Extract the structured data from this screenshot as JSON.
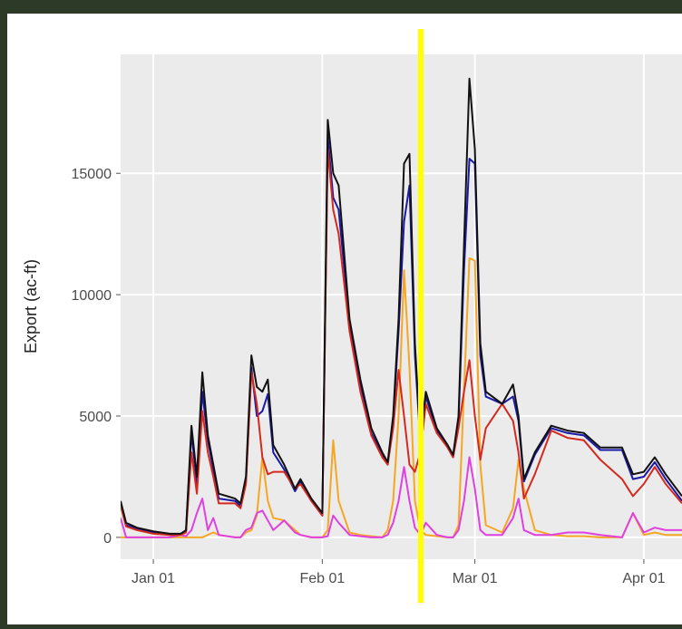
{
  "chart_data": {
    "type": "line",
    "y_label": "Export (ac-ft)",
    "x": [
      "Dec 26",
      "Dec 27",
      "Dec 29",
      "Jan 01",
      "Jan 04",
      "Jan 06",
      "Jan 07",
      "Jan 08",
      "Jan 09",
      "Jan 10",
      "Jan 11",
      "Jan 12",
      "Jan 13",
      "Jan 16",
      "Jan 17",
      "Jan 18",
      "Jan 19",
      "Jan 20",
      "Jan 21",
      "Jan 22",
      "Jan 23",
      "Jan 25",
      "Jan 27",
      "Jan 28",
      "Jan 30",
      "Feb 01",
      "Feb 02",
      "Feb 03",
      "Feb 04",
      "Feb 06",
      "Feb 08",
      "Feb 10",
      "Feb 12",
      "Feb 13",
      "Feb 14",
      "Feb 15",
      "Feb 16",
      "Feb 17",
      "Feb 18",
      "Feb 19",
      "Feb 20",
      "Feb 22",
      "Feb 24",
      "Feb 25",
      "Feb 26",
      "Feb 27",
      "Feb 28",
      "Mar 01",
      "Mar 02",
      "Mar 03",
      "Mar 06",
      "Mar 08",
      "Mar 09",
      "Mar 10",
      "Mar 12",
      "Mar 15",
      "Mar 18",
      "Mar 21",
      "Mar 24",
      "Mar 28",
      "Mar 30",
      "Apr 01",
      "Apr 03",
      "Apr 05",
      "Apr 08"
    ],
    "series": [
      {
        "color": "#f5a623",
        "values": [
          0,
          0,
          0,
          0,
          0,
          0,
          0,
          0,
          0,
          0,
          100,
          200,
          100,
          0,
          0,
          200,
          300,
          900,
          3300,
          1500,
          800,
          700,
          300,
          100,
          0,
          0,
          300,
          4000,
          1500,
          200,
          100,
          50,
          0,
          300,
          1500,
          5000,
          11000,
          7000,
          1500,
          300,
          100,
          50,
          0,
          0,
          500,
          6000,
          11500,
          11400,
          3000,
          500,
          200,
          1200,
          3200,
          2000,
          300,
          100,
          50,
          50,
          0,
          0,
          1000,
          100,
          200,
          100,
          100
        ]
      },
      {
        "color": "#e040e0",
        "values": [
          800,
          0,
          0,
          0,
          0,
          100,
          50,
          300,
          1000,
          1600,
          300,
          800,
          100,
          0,
          0,
          300,
          400,
          1000,
          1100,
          700,
          300,
          700,
          200,
          100,
          0,
          0,
          50,
          900,
          600,
          100,
          50,
          0,
          0,
          100,
          600,
          1500,
          2900,
          1500,
          400,
          100,
          600,
          100,
          0,
          0,
          300,
          1500,
          3300,
          2000,
          300,
          100,
          100,
          800,
          1600,
          300,
          100,
          100,
          200,
          200,
          100,
          0,
          1000,
          200,
          400,
          300,
          300
        ]
      },
      {
        "color": "#1a1aa8",
        "values": [
          1400,
          500,
          350,
          200,
          100,
          100,
          250,
          4300,
          2200,
          6000,
          4000,
          2800,
          1600,
          1500,
          1300,
          2300,
          7000,
          5000,
          5200,
          5900,
          3500,
          2800,
          1900,
          2300,
          1500,
          900,
          16500,
          14000,
          13500,
          8800,
          6300,
          4300,
          3400,
          3000,
          4800,
          8500,
          13000,
          14500,
          7500,
          3900,
          5800,
          4400,
          3700,
          3300,
          4800,
          11000,
          15600,
          15400,
          7500,
          5800,
          5500,
          5800,
          4800,
          2300,
          3400,
          4500,
          4300,
          4200,
          3600,
          3600,
          2400,
          2500,
          3100,
          2400,
          1500
        ]
      },
      {
        "color": "#d42a1e",
        "values": [
          1300,
          450,
          300,
          150,
          100,
          100,
          200,
          3500,
          1800,
          5200,
          3500,
          2500,
          1400,
          1400,
          1200,
          2200,
          6800,
          5500,
          3300,
          2600,
          2700,
          2700,
          2000,
          2200,
          1500,
          900,
          16000,
          13500,
          12500,
          8500,
          6000,
          4200,
          3300,
          3000,
          4500,
          6900,
          5000,
          3000,
          2700,
          3500,
          5500,
          4300,
          3700,
          3300,
          4500,
          6000,
          7300,
          5000,
          3200,
          4500,
          5500,
          4800,
          3500,
          1600,
          2600,
          4400,
          4100,
          4000,
          3200,
          2400,
          1700,
          2200,
          2900,
          2200,
          1400
        ]
      },
      {
        "color": "#111111",
        "values": [
          1500,
          600,
          400,
          250,
          150,
          150,
          300,
          4600,
          2500,
          6800,
          4200,
          3000,
          1800,
          1600,
          1400,
          2500,
          7500,
          6200,
          6000,
          6500,
          3800,
          3000,
          2000,
          2400,
          1600,
          1000,
          17200,
          15000,
          14500,
          9000,
          6500,
          4500,
          3500,
          3100,
          5000,
          9000,
          15400,
          15800,
          8000,
          4000,
          6000,
          4500,
          3800,
          3400,
          5000,
          12000,
          18900,
          16000,
          8000,
          6000,
          5500,
          6300,
          5000,
          2400,
          3500,
          4600,
          4400,
          4300,
          3700,
          3700,
          2600,
          2700,
          3300,
          2600,
          1700
        ]
      }
    ],
    "xlim": [
      "Dec 26",
      "Apr 08"
    ],
    "xticks": [
      "Jan 01",
      "Feb 01",
      "Mar 01",
      "Apr 01"
    ],
    "ylim": [
      -900,
      19900
    ],
    "yticks": [
      0,
      5000,
      10000,
      15000
    ],
    "grid": true
  }
}
